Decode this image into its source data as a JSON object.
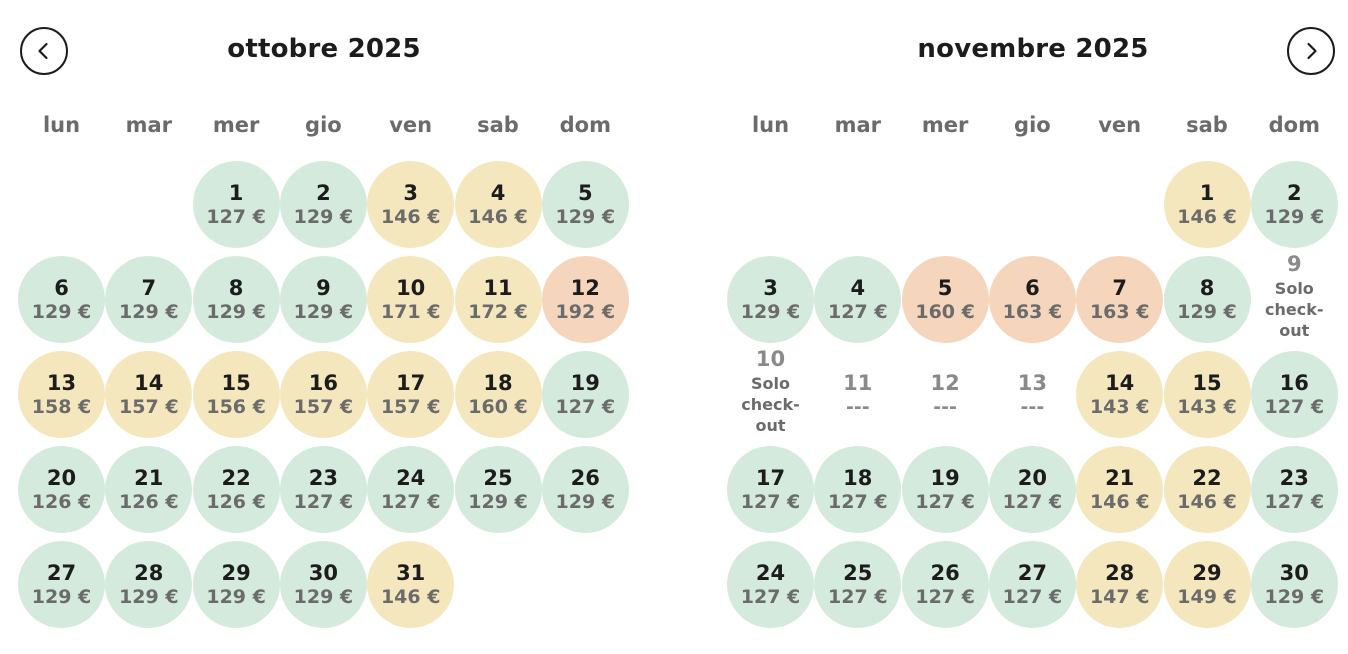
{
  "nav": {
    "prev_label": "previous-month",
    "next_label": "next-month"
  },
  "weekdays": [
    "lun",
    "mar",
    "mer",
    "gio",
    "ven",
    "sab",
    "dom"
  ],
  "colors": {
    "green": "#d4eadc",
    "yellow": "#f5e7bd",
    "orange": "#f5d6bd"
  },
  "months": [
    {
      "title": "ottobre 2025",
      "start_col": 2,
      "days": [
        {
          "d": "1",
          "p": "127 €",
          "c": "green"
        },
        {
          "d": "2",
          "p": "129 €",
          "c": "green"
        },
        {
          "d": "3",
          "p": "146 €",
          "c": "yellow"
        },
        {
          "d": "4",
          "p": "146 €",
          "c": "yellow"
        },
        {
          "d": "5",
          "p": "129 €",
          "c": "green"
        },
        {
          "d": "6",
          "p": "129 €",
          "c": "green"
        },
        {
          "d": "7",
          "p": "129 €",
          "c": "green"
        },
        {
          "d": "8",
          "p": "129 €",
          "c": "green"
        },
        {
          "d": "9",
          "p": "129 €",
          "c": "green"
        },
        {
          "d": "10",
          "p": "171 €",
          "c": "yellow"
        },
        {
          "d": "11",
          "p": "172 €",
          "c": "yellow"
        },
        {
          "d": "12",
          "p": "192 €",
          "c": "orange"
        },
        {
          "d": "13",
          "p": "158 €",
          "c": "yellow"
        },
        {
          "d": "14",
          "p": "157 €",
          "c": "yellow"
        },
        {
          "d": "15",
          "p": "156 €",
          "c": "yellow"
        },
        {
          "d": "16",
          "p": "157 €",
          "c": "yellow"
        },
        {
          "d": "17",
          "p": "157 €",
          "c": "yellow"
        },
        {
          "d": "18",
          "p": "160 €",
          "c": "yellow"
        },
        {
          "d": "19",
          "p": "127 €",
          "c": "green"
        },
        {
          "d": "20",
          "p": "126 €",
          "c": "green"
        },
        {
          "d": "21",
          "p": "126 €",
          "c": "green"
        },
        {
          "d": "22",
          "p": "126 €",
          "c": "green"
        },
        {
          "d": "23",
          "p": "127 €",
          "c": "green"
        },
        {
          "d": "24",
          "p": "127 €",
          "c": "green"
        },
        {
          "d": "25",
          "p": "129 €",
          "c": "green"
        },
        {
          "d": "26",
          "p": "129 €",
          "c": "green"
        },
        {
          "d": "27",
          "p": "129 €",
          "c": "green"
        },
        {
          "d": "28",
          "p": "129 €",
          "c": "green"
        },
        {
          "d": "29",
          "p": "129 €",
          "c": "green"
        },
        {
          "d": "30",
          "p": "129 €",
          "c": "green"
        },
        {
          "d": "31",
          "p": "146 €",
          "c": "yellow"
        }
      ]
    },
    {
      "title": "novembre 2025",
      "start_col": 5,
      "days": [
        {
          "d": "1",
          "p": "146 €",
          "c": "yellow"
        },
        {
          "d": "2",
          "p": "129 €",
          "c": "green"
        },
        {
          "d": "3",
          "p": "129 €",
          "c": "green"
        },
        {
          "d": "4",
          "p": "127 €",
          "c": "green"
        },
        {
          "d": "5",
          "p": "160 €",
          "c": "orange"
        },
        {
          "d": "6",
          "p": "163 €",
          "c": "orange"
        },
        {
          "d": "7",
          "p": "163 €",
          "c": "orange"
        },
        {
          "d": "8",
          "p": "129 €",
          "c": "green"
        },
        {
          "d": "9",
          "note": "Solo check-out",
          "c": "checkout"
        },
        {
          "d": "10",
          "note": "Solo check-out",
          "c": "checkout"
        },
        {
          "d": "11",
          "p": "---",
          "c": "unavail"
        },
        {
          "d": "12",
          "p": "---",
          "c": "unavail"
        },
        {
          "d": "13",
          "p": "---",
          "c": "unavail"
        },
        {
          "d": "14",
          "p": "143 €",
          "c": "yellow"
        },
        {
          "d": "15",
          "p": "143 €",
          "c": "yellow"
        },
        {
          "d": "16",
          "p": "127 €",
          "c": "green"
        },
        {
          "d": "17",
          "p": "127 €",
          "c": "green"
        },
        {
          "d": "18",
          "p": "127 €",
          "c": "green"
        },
        {
          "d": "19",
          "p": "127 €",
          "c": "green"
        },
        {
          "d": "20",
          "p": "127 €",
          "c": "green"
        },
        {
          "d": "21",
          "p": "146 €",
          "c": "yellow"
        },
        {
          "d": "22",
          "p": "146 €",
          "c": "yellow"
        },
        {
          "d": "23",
          "p": "127 €",
          "c": "green"
        },
        {
          "d": "24",
          "p": "127 €",
          "c": "green"
        },
        {
          "d": "25",
          "p": "127 €",
          "c": "green"
        },
        {
          "d": "26",
          "p": "127 €",
          "c": "green"
        },
        {
          "d": "27",
          "p": "127 €",
          "c": "green"
        },
        {
          "d": "28",
          "p": "147 €",
          "c": "yellow"
        },
        {
          "d": "29",
          "p": "149 €",
          "c": "yellow"
        },
        {
          "d": "30",
          "p": "129 €",
          "c": "green"
        }
      ]
    }
  ]
}
